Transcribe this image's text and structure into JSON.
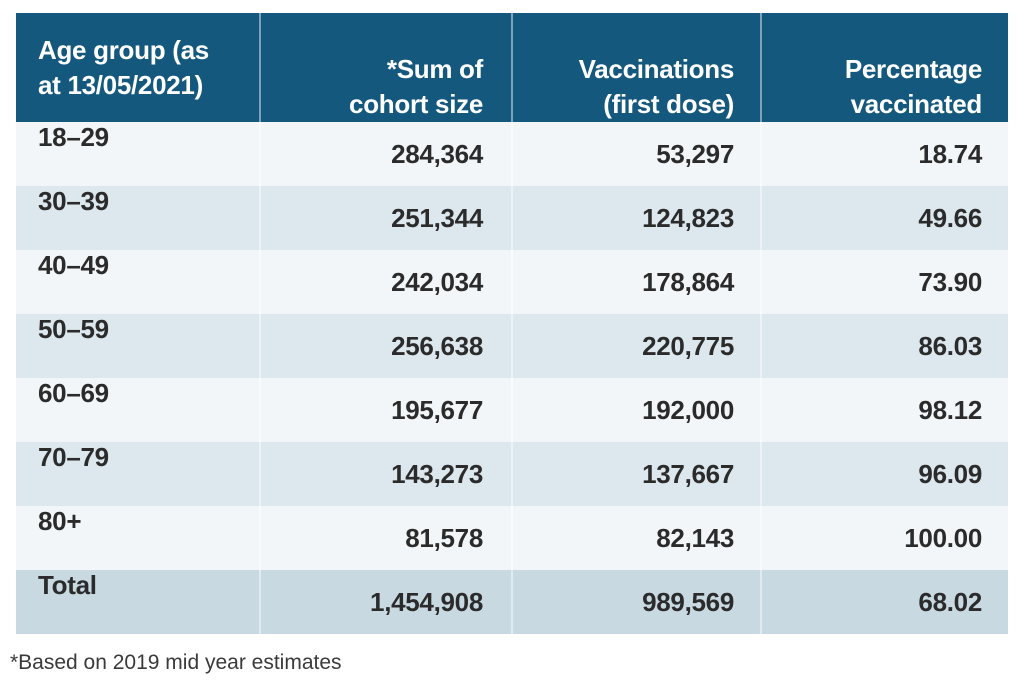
{
  "colors": {
    "header_bg": "#14587e",
    "header_text": "#ffffff",
    "row_odd": "#f2f6f9",
    "row_even": "#dde7ee",
    "total_bg": "#c8d9e2",
    "body_text": "#2b2b2b"
  },
  "header_display": {
    "col1": [
      "Age group (as",
      "at 13/05/2021)"
    ],
    "col2": [
      "*Sum of",
      "cohort size"
    ],
    "col3": [
      "Vaccinations",
      "(first dose)"
    ],
    "col4": [
      "Percentage",
      "vaccinated"
    ]
  },
  "chart_data": {
    "type": "table",
    "title": "",
    "columns": [
      "Age group (as at 13/05/2021)",
      "*Sum of cohort size",
      "Vaccinations (first dose)",
      "Percentage vaccinated"
    ],
    "rows": [
      [
        "18–29",
        "284,364",
        "53,297",
        "18.74"
      ],
      [
        "30–39",
        "251,344",
        "124,823",
        "49.66"
      ],
      [
        "40–49",
        "242,034",
        "178,864",
        "73.90"
      ],
      [
        "50–59",
        "256,638",
        "220,775",
        "86.03"
      ],
      [
        "60–69",
        "195,677",
        "192,000",
        "98.12"
      ],
      [
        "70–79",
        "143,273",
        "137,667",
        "96.09"
      ],
      [
        "80+",
        "81,578",
        "82,143",
        "100.00"
      ],
      [
        "Total",
        "1,454,908",
        "989,569",
        "68.02"
      ]
    ],
    "footnote": "*Based on 2019 mid year estimates"
  }
}
